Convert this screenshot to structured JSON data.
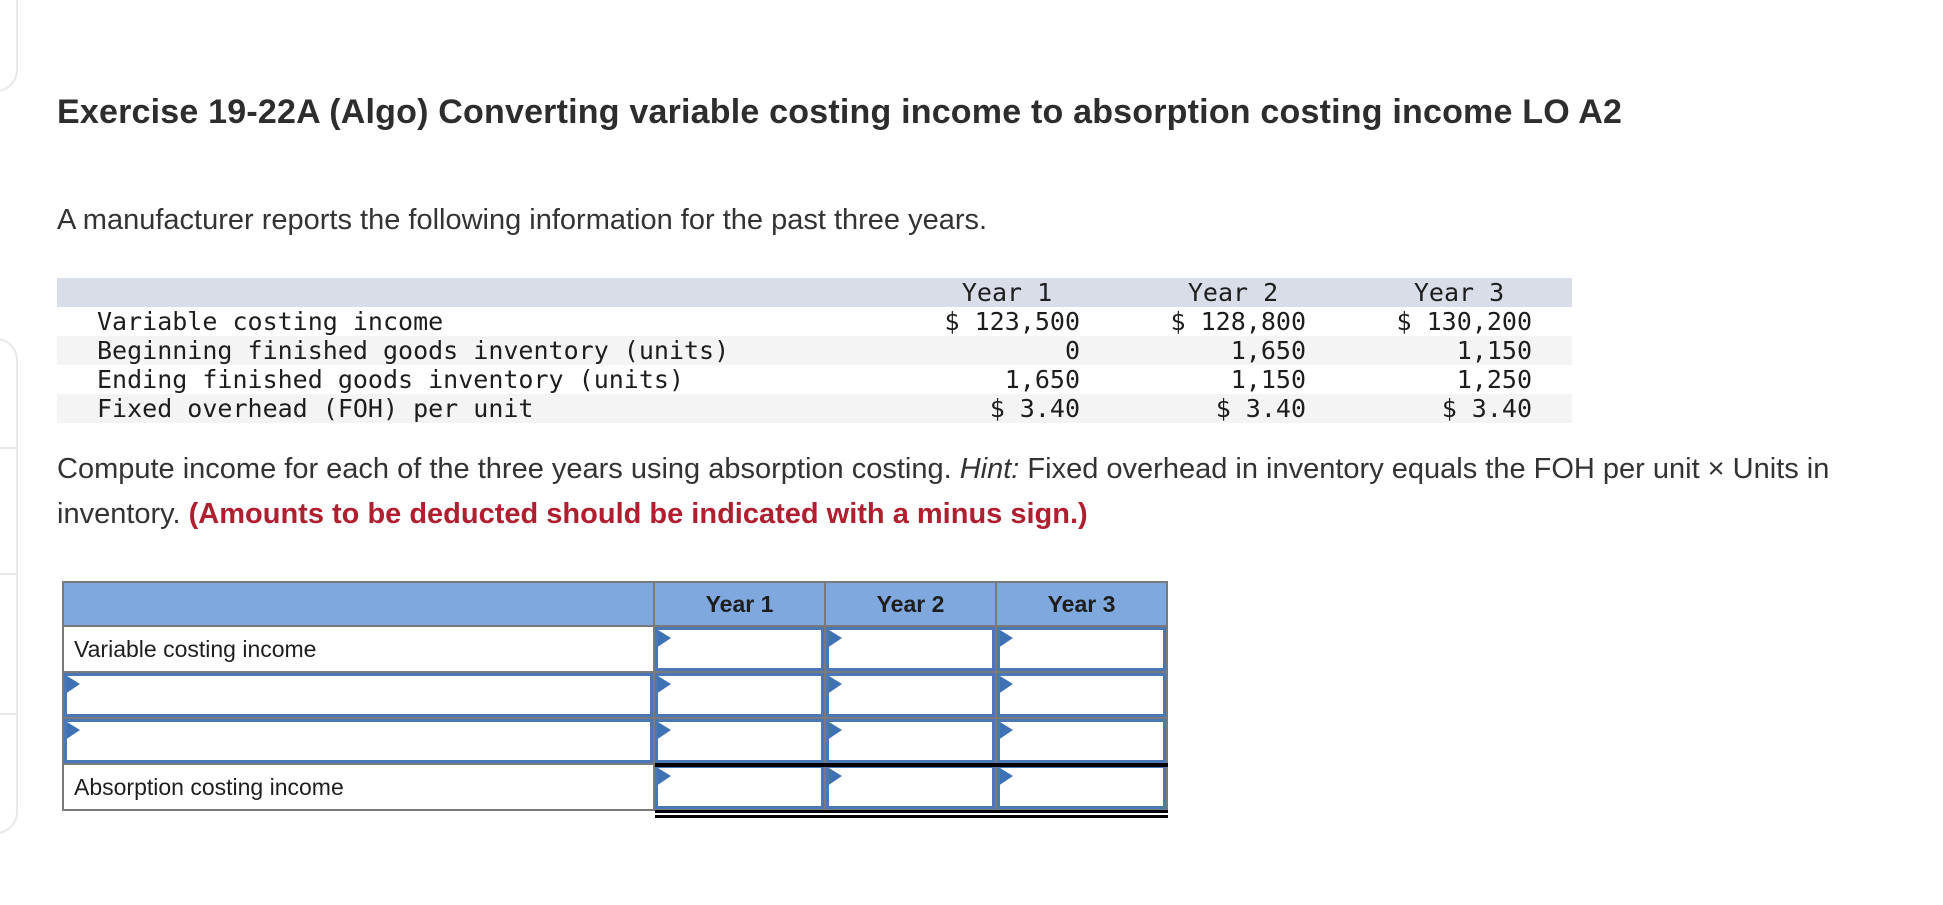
{
  "header": {
    "title": "Exercise 19-22A (Algo) Converting variable costing income to absorption costing income LO A2"
  },
  "intro": {
    "text": "A manufacturer reports the following information for the past three years."
  },
  "data_table": {
    "columns": [
      "Year 1",
      "Year 2",
      "Year 3"
    ],
    "rows": [
      {
        "label": "Variable costing income",
        "values": [
          "$ 123,500",
          "$ 128,800",
          "$ 130,200"
        ]
      },
      {
        "label": "Beginning finished goods inventory (units)",
        "values": [
          "0",
          "1,650",
          "1,150"
        ]
      },
      {
        "label": "Ending finished goods inventory (units)",
        "values": [
          "1,650",
          "1,150",
          "1,250"
        ]
      },
      {
        "label": "Fixed overhead (FOH) per unit",
        "values": [
          "$ 3.40",
          "$ 3.40",
          "$ 3.40"
        ]
      }
    ]
  },
  "instructions": {
    "part1": "Compute income for each of the three years using absorption costing. ",
    "hint_label": "Hint:",
    "part2": " Fixed overhead in inventory equals the FOH per unit × Units in inventory. ",
    "deduction_note": "(Amounts to be deducted should be indicated with a minus sign.)"
  },
  "answer_table": {
    "columns": [
      "Year 1",
      "Year 2",
      "Year 3"
    ],
    "rows": [
      {
        "label": "Variable costing income",
        "label_editable": false,
        "values": [
          "",
          "",
          ""
        ]
      },
      {
        "label": "",
        "label_editable": true,
        "values": [
          "",
          "",
          ""
        ]
      },
      {
        "label": "",
        "label_editable": true,
        "values": [
          "",
          "",
          ""
        ]
      },
      {
        "label": "Absorption costing income",
        "label_editable": false,
        "values": [
          "",
          "",
          ""
        ]
      }
    ]
  },
  "colors": {
    "page_background": "#ffffff",
    "answer_header_bg": "#7ea8de",
    "input_border_blue": "#4a78b7",
    "input_marker_blue": "#3f72b4",
    "warning_red": "#b01f30",
    "given_header_bg": "#d9dde8",
    "given_alt_row": "#f4f4f4",
    "grid_gray": "#7a7a7a"
  }
}
